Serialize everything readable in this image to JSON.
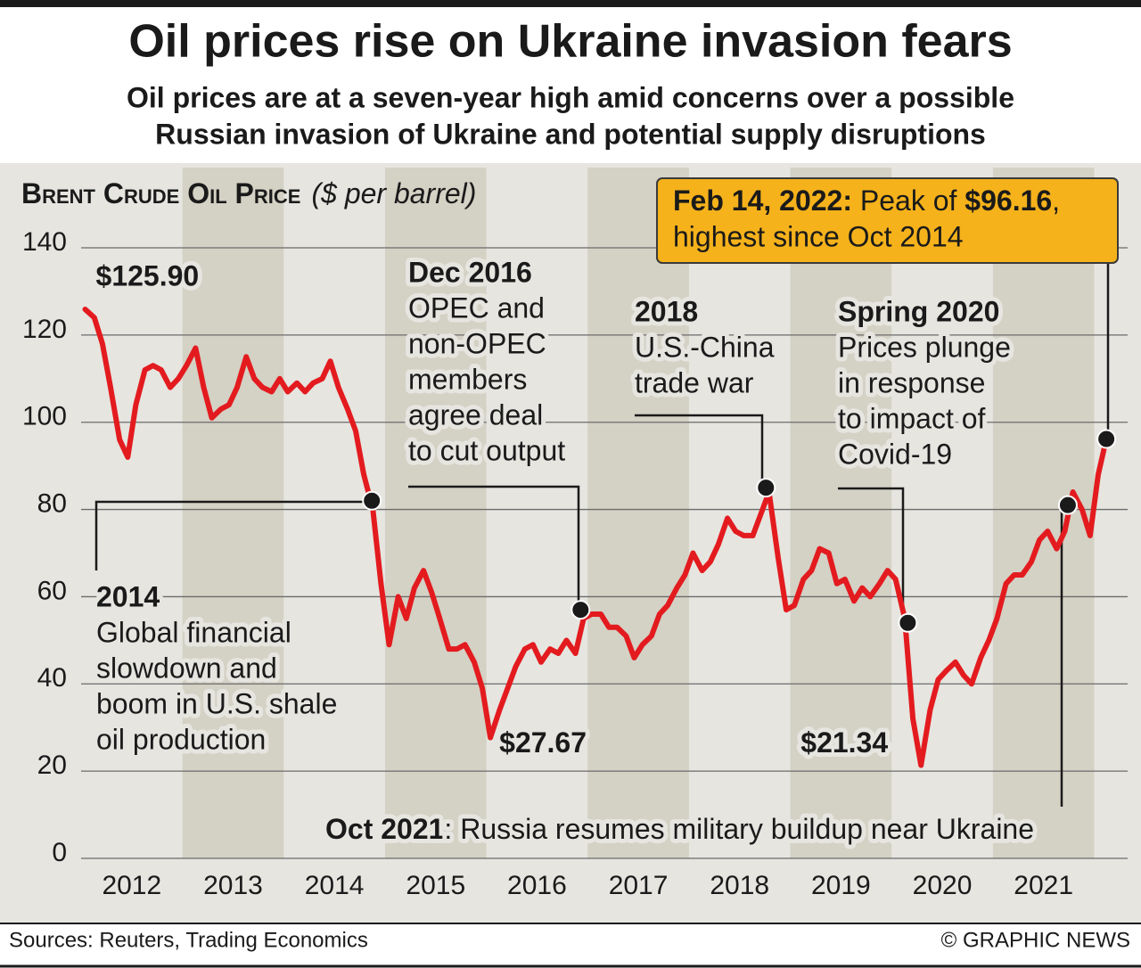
{
  "chart_data": {
    "type": "line",
    "title": "Oil prices rise on Ukraine invasion fears",
    "subtitle": [
      "Oil prices are at a seven-year high amid concerns over a possible",
      "Russian invasion of Ukraine and potential supply disruptions"
    ],
    "y_axis_title": "Brent Crude Oil Price",
    "y_axis_unit": "($ per barrel)",
    "color": "#e31b1f",
    "x": [
      2012.04,
      2012.13,
      2012.21,
      2012.29,
      2012.38,
      2012.46,
      2012.54,
      2012.63,
      2012.71,
      2012.79,
      2012.88,
      2012.96,
      2013.04,
      2013.13,
      2013.21,
      2013.29,
      2013.38,
      2013.46,
      2013.54,
      2013.63,
      2013.71,
      2013.79,
      2013.88,
      2013.96,
      2014.04,
      2014.13,
      2014.21,
      2014.29,
      2014.38,
      2014.46,
      2014.54,
      2014.63,
      2014.71,
      2014.79,
      2014.88,
      2014.96,
      2015.04,
      2015.13,
      2015.21,
      2015.29,
      2015.38,
      2015.46,
      2015.54,
      2015.63,
      2015.71,
      2015.79,
      2015.88,
      2015.96,
      2016.04,
      2016.13,
      2016.21,
      2016.29,
      2016.38,
      2016.46,
      2016.54,
      2016.63,
      2016.71,
      2016.79,
      2016.88,
      2016.96,
      2017.04,
      2017.13,
      2017.21,
      2017.29,
      2017.38,
      2017.46,
      2017.54,
      2017.63,
      2017.71,
      2017.79,
      2017.88,
      2017.96,
      2018.04,
      2018.13,
      2018.21,
      2018.29,
      2018.38,
      2018.46,
      2018.54,
      2018.63,
      2018.71,
      2018.79,
      2018.88,
      2018.96,
      2019.04,
      2019.13,
      2019.21,
      2019.29,
      2019.38,
      2019.46,
      2019.54,
      2019.63,
      2019.71,
      2019.79,
      2019.88,
      2019.96,
      2020.04,
      2020.13,
      2020.21,
      2020.29,
      2020.38,
      2020.46,
      2020.54,
      2020.63,
      2020.71,
      2020.79,
      2020.88,
      2020.96,
      2021.04,
      2021.13,
      2021.21,
      2021.29,
      2021.38,
      2021.46,
      2021.54,
      2021.63,
      2021.71,
      2021.79,
      2021.88,
      2021.96,
      2022.04,
      2022.12
    ],
    "values": [
      125.9,
      124,
      118,
      108,
      96,
      92,
      104,
      112,
      113,
      112,
      108,
      110,
      113,
      117,
      108,
      101,
      103,
      104,
      108,
      115,
      110,
      108,
      107,
      110,
      107,
      109,
      107,
      109,
      110,
      114,
      108,
      103,
      98,
      88,
      80,
      63,
      49,
      60,
      55,
      62,
      66,
      61,
      55,
      48,
      48,
      49,
      45,
      39,
      27.67,
      34,
      39,
      44,
      48,
      49,
      45,
      48,
      47,
      50,
      47,
      55,
      56,
      56,
      53,
      53,
      51,
      46,
      49,
      51,
      56,
      58,
      62,
      65,
      70,
      66,
      68,
      72,
      78,
      75,
      74,
      74,
      79,
      84,
      69,
      57,
      58,
      64,
      66,
      71,
      70,
      63,
      64,
      59,
      62,
      60,
      63,
      66,
      64,
      55,
      32,
      21.34,
      34,
      41,
      43,
      45,
      42,
      40,
      46,
      50,
      55,
      63,
      65,
      65,
      68,
      73,
      75,
      71,
      75,
      84,
      80,
      74,
      88,
      96.16
    ],
    "xlim": [
      2012,
      2022.33
    ],
    "xticks": [
      {
        "value": 2012.5,
        "label": "2012"
      },
      {
        "value": 2013.5,
        "label": "2013"
      },
      {
        "value": 2014.5,
        "label": "2014"
      },
      {
        "value": 2015.5,
        "label": "2015"
      },
      {
        "value": 2016.5,
        "label": "2016"
      },
      {
        "value": 2017.5,
        "label": "2017"
      },
      {
        "value": 2018.5,
        "label": "2018"
      },
      {
        "value": 2019.5,
        "label": "2019"
      },
      {
        "value": 2020.5,
        "label": "2020"
      },
      {
        "value": 2021.5,
        "label": "2021"
      }
    ],
    "ylim": [
      0,
      140
    ],
    "yticks": [
      0,
      20,
      40,
      60,
      80,
      100,
      120,
      140
    ],
    "grid": true,
    "point_labels": [
      {
        "x": 2012.04,
        "value": 125.9,
        "label": "$125.90"
      },
      {
        "x": 2016.04,
        "value": 27.67,
        "label": "$27.67"
      },
      {
        "x": 2020.29,
        "value": 21.34,
        "label": "$21.34"
      }
    ],
    "annotations": [
      {
        "heading": "2014",
        "lines": [
          "Global financial",
          "slowdown and",
          "boom in U.S. shale",
          "oil production"
        ],
        "x": 2014.87,
        "y": 82
      },
      {
        "heading": "Dec 2016",
        "lines": [
          "OPEC and",
          "non-OPEC",
          "members",
          "agree deal",
          "to cut output"
        ],
        "x": 2016.93,
        "y": 57
      },
      {
        "heading": "2018",
        "lines": [
          "U.S.-China",
          "trade war"
        ],
        "x": 2018.76,
        "y": 85
      },
      {
        "heading": "Spring 2020",
        "lines": [
          "Prices plunge",
          "in response",
          "to impact of",
          "Covid-19"
        ],
        "x": 2020.16,
        "y": 54
      }
    ],
    "oct_note": {
      "heading": "Oct 2021",
      "text": ": Russia resumes military buildup near Ukraine",
      "x": 2021.74,
      "y": 81
    },
    "peak_note": {
      "parts": [
        "Feb 14, 2022:",
        " Peak of ",
        "$96.16",
        ","
      ],
      "line2": "highest since Oct 2014",
      "x": 2022.12,
      "y": 96.16
    },
    "source": "Sources: Reuters, Trading Economics",
    "credit": "© GRAPHIC NEWS"
  }
}
